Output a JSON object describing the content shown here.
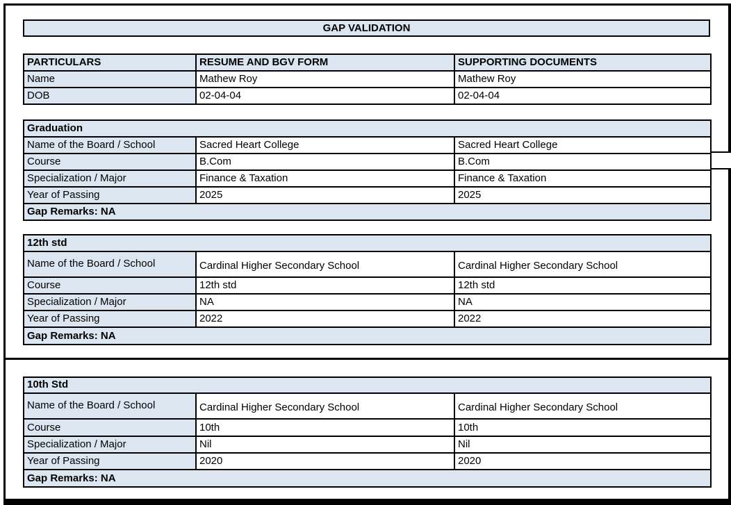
{
  "title": "GAP VALIDATION",
  "colors": {
    "header_fill": "#dce6f1",
    "border": "#000000",
    "text": "#000000",
    "background": "#ffffff"
  },
  "particulars": {
    "headers": [
      "PARTICULARS",
      "RESUME AND BGV FORM",
      "SUPPORTING DOCUMENTS"
    ],
    "rows": [
      [
        "Name",
        "Mathew Roy",
        "Mathew Roy"
      ],
      [
        "DOB",
        "02-04-04",
        "02-04-04"
      ]
    ]
  },
  "sections": [
    {
      "title": "Graduation",
      "rows": [
        [
          "Name of the Board / School",
          "Sacred Heart College",
          "Sacred Heart College"
        ],
        [
          "Course",
          "B.Com",
          "B.Com"
        ],
        [
          "Specialization / Major",
          "Finance & Taxation",
          "Finance & Taxation"
        ],
        [
          "Year of Passing",
          "2025",
          "2025"
        ]
      ],
      "gap_remarks": "Gap Remarks: NA"
    },
    {
      "title": "12th std",
      "rows": [
        [
          "Name of the Board / School",
          "Cardinal Higher Secondary School",
          "Cardinal Higher Secondary School"
        ],
        [
          "Course",
          "12th std",
          "12th std"
        ],
        [
          "Specialization / Major",
          "NA",
          "NA"
        ],
        [
          "Year of Passing",
          "2022",
          "2022"
        ]
      ],
      "gap_remarks": "Gap Remarks: NA"
    },
    {
      "title": "10th Std",
      "rows": [
        [
          "Name of the Board / School",
          "Cardinal Higher Secondary School",
          "Cardinal Higher Secondary School"
        ],
        [
          "Course",
          "10th",
          "10th"
        ],
        [
          "Specialization / Major",
          "Nil",
          "Nil"
        ],
        [
          "Year of Passing",
          "2020",
          "2020"
        ]
      ],
      "gap_remarks": "Gap Remarks: NA"
    }
  ]
}
